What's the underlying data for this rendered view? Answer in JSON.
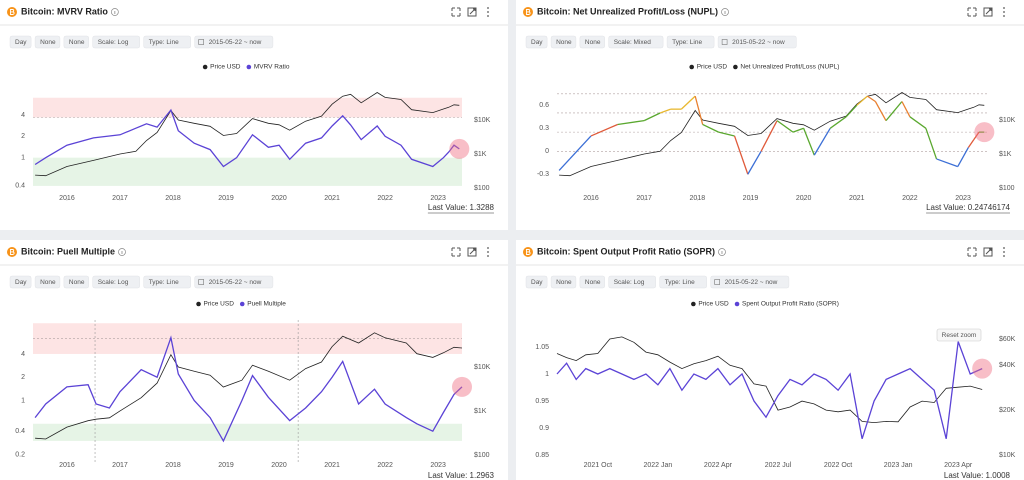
{
  "chart_data": [
    {
      "type": "line",
      "title": "Bitcoin: MVRV Ratio",
      "toolbar": [
        "Day",
        "None",
        "None",
        "Scale: Log",
        "Type: Line",
        "2015-05-22 ~ now"
      ],
      "last_value": "Last Value: 1.3288",
      "x": [
        2015.4,
        2015.6,
        2016,
        2016.5,
        2017,
        2017.3,
        2017.5,
        2017.7,
        2017.96,
        2018.1,
        2018.4,
        2018.7,
        2018.95,
        2019.2,
        2019.5,
        2019.8,
        2020,
        2020.2,
        2020.5,
        2020.8,
        2021,
        2021.2,
        2021.35,
        2021.55,
        2021.85,
        2022,
        2022.3,
        2022.5,
        2022.9,
        2023.1,
        2023.2,
        2023.3,
        2023.4
      ],
      "series": [
        {
          "name": "Price USD",
          "color": "#222222",
          "axis": "y2",
          "values": [
            240,
            230,
            430,
            650,
            1000,
            1200,
            2500,
            4300,
            19000,
            10000,
            8000,
            6500,
            3500,
            4000,
            11000,
            8000,
            7200,
            5000,
            9200,
            13000,
            29000,
            50000,
            57000,
            32000,
            64000,
            46000,
            40000,
            20000,
            16500,
            21000,
            23500,
            28000,
            27000
          ]
        },
        {
          "name": "MVRV Ratio",
          "color": "#5b43d6",
          "values": [
            0.8,
            1.0,
            1.5,
            1.9,
            2.1,
            2.6,
            3.0,
            2.7,
            4.7,
            2.4,
            1.6,
            1.3,
            0.75,
            1.0,
            2.1,
            1.4,
            1.5,
            0.95,
            1.6,
            1.9,
            2.8,
            3.9,
            2.9,
            1.8,
            2.8,
            2.0,
            1.5,
            0.95,
            0.75,
            1.0,
            1.2,
            1.5,
            1.33
          ]
        }
      ],
      "xlim": [
        2015.36,
        2023.45
      ],
      "xticks": [
        2016,
        2017,
        2018,
        2019,
        2020,
        2021,
        2022,
        2023
      ],
      "ylog": true,
      "ylim": [
        0.27,
        9
      ],
      "yticks": [
        0.4,
        1,
        2,
        4
      ],
      "y2log": true,
      "y2lim": [
        51,
        76000
      ],
      "y2ticks": [
        {
          "value": 100,
          "label": "$100"
        },
        {
          "value": 1000,
          "label": "$1K"
        },
        {
          "value": 10000,
          "label": "$10K"
        }
      ],
      "bands": [
        {
          "from": 3.7,
          "to": 7,
          "color": "#fde4e4"
        },
        {
          "from": 0.4,
          "to": 1,
          "color": "#e6f4e6"
        }
      ],
      "ref_lines": [
        3.7
      ]
    },
    {
      "type": "line",
      "title": "Bitcoin: Net Unrealized Profit/Loss (NUPL)",
      "toolbar": [
        "Day",
        "None",
        "None",
        "Scale: Mixed",
        "Type: Line",
        "2015-05-22 ~ now"
      ],
      "last_value": "Last Value: 0.24746174",
      "x": [
        2015.4,
        2015.6,
        2016,
        2016.5,
        2017,
        2017.3,
        2017.5,
        2017.7,
        2017.96,
        2018.1,
        2018.4,
        2018.7,
        2018.95,
        2019.2,
        2019.5,
        2019.8,
        2020,
        2020.2,
        2020.5,
        2020.8,
        2021,
        2021.2,
        2021.35,
        2021.55,
        2021.85,
        2022,
        2022.3,
        2022.5,
        2022.9,
        2023.1,
        2023.2,
        2023.3,
        2023.4
      ],
      "series": [
        {
          "name": "Price USD",
          "color": "#222222",
          "axis": "y2",
          "values": [
            240,
            230,
            430,
            650,
            1000,
            1200,
            2500,
            4300,
            19000,
            10000,
            8000,
            6500,
            3500,
            4000,
            11000,
            8000,
            7200,
            5000,
            9200,
            13000,
            29000,
            50000,
            57000,
            32000,
            64000,
            46000,
            40000,
            20000,
            16500,
            21000,
            23500,
            28000,
            27000
          ]
        },
        {
          "name": "Net Unrealized Profit/Loss (NUPL)",
          "color": "#222222",
          "value_colors": [
            {
              "max": 0,
              "color": "#3c6fd6"
            },
            {
              "max": 0.25,
              "color": "#e05a3a"
            },
            {
              "max": 0.5,
              "color": "#5aa82f"
            },
            {
              "max": 0.65,
              "color": "#e8b830"
            },
            {
              "color": "#e88030"
            }
          ],
          "values": [
            -0.25,
            -0.1,
            0.2,
            0.35,
            0.4,
            0.5,
            0.55,
            0.55,
            0.72,
            0.35,
            0.25,
            0.2,
            -0.3,
            0.0,
            0.4,
            0.25,
            0.3,
            -0.05,
            0.3,
            0.45,
            0.6,
            0.72,
            0.65,
            0.4,
            0.65,
            0.45,
            0.3,
            -0.1,
            -0.2,
            0.05,
            0.15,
            0.25,
            0.25
          ]
        }
      ],
      "xlim": [
        2015.36,
        2023.45
      ],
      "xticks": [
        2016,
        2017,
        2018,
        2019,
        2020,
        2021,
        2022,
        2023
      ],
      "ylim": [
        -0.61,
        0.8
      ],
      "yticks": [
        -0.3,
        0,
        0.3,
        0.6
      ],
      "y2log": true,
      "y2lim": [
        51,
        76000
      ],
      "y2ticks": [
        {
          "value": 100,
          "label": "$100"
        },
        {
          "value": 1000,
          "label": "$1K"
        },
        {
          "value": 10000,
          "label": "$10K"
        }
      ],
      "ref_lines": [
        0.75,
        0.5,
        0.25,
        0
      ]
    },
    {
      "type": "line",
      "title": "Bitcoin: Puell Multiple",
      "toolbar": [
        "Day",
        "None",
        "None",
        "Scale: Log",
        "Type: Line",
        "2015-05-22 ~ now"
      ],
      "last_value": "Last Value: 1.2963",
      "x": [
        2015.4,
        2015.6,
        2016,
        2016.4,
        2016.55,
        2016.8,
        2017,
        2017.4,
        2017.7,
        2017.96,
        2018.1,
        2018.4,
        2018.7,
        2018.95,
        2019.3,
        2019.5,
        2019.8,
        2020.2,
        2020.5,
        2020.8,
        2021,
        2021.2,
        2021.5,
        2021.8,
        2022,
        2022.4,
        2022.6,
        2022.9,
        2023.1,
        2023.3,
        2023.45
      ],
      "series": [
        {
          "name": "Price USD",
          "color": "#222222",
          "axis": "y2",
          "values": [
            240,
            230,
            430,
            600,
            650,
            700,
            1000,
            2000,
            4300,
            19000,
            10000,
            8000,
            6500,
            3500,
            5000,
            11000,
            8000,
            5000,
            9200,
            13000,
            29000,
            50000,
            35000,
            60000,
            46000,
            35000,
            20000,
            16500,
            21000,
            28000,
            27000
          ]
        },
        {
          "name": "Puell Multiple",
          "color": "#5b43d6",
          "values": [
            0.6,
            0.9,
            1.5,
            1.6,
            0.9,
            0.8,
            1.3,
            2.5,
            2.0,
            6.5,
            2.2,
            1.0,
            0.6,
            0.3,
            1.0,
            2.1,
            1.1,
            0.55,
            0.8,
            1.3,
            2.0,
            3.2,
            0.9,
            1.4,
            0.9,
            0.6,
            0.5,
            0.4,
            0.7,
            1.2,
            1.5
          ]
        }
      ],
      "xlim": [
        2015.36,
        2023.45
      ],
      "xticks": [
        2016,
        2017,
        2018,
        2019,
        2020,
        2021,
        2022,
        2023
      ],
      "ylog": true,
      "ylim": [
        0.16,
        11
      ],
      "yticks": [
        0.2,
        0.4,
        1,
        2,
        4
      ],
      "y2log": true,
      "y2lim": [
        69,
        117000
      ],
      "y2ticks": [
        {
          "value": 100,
          "label": "$100"
        },
        {
          "value": 1000,
          "label": "$1K"
        },
        {
          "value": 10000,
          "label": "$10K"
        }
      ],
      "bands": [
        {
          "from": 4,
          "to": 10,
          "color": "#fde4e4"
        },
        {
          "from": 0.3,
          "to": 0.5,
          "color": "#e6f4e6"
        }
      ],
      "ref_lines": [
        6.3
      ],
      "event_lines": [
        2016.53,
        2020.36
      ]
    },
    {
      "type": "line",
      "title": "Bitcoin: Spent Output Profit Ratio (SOPR)",
      "toolbar": [
        "Day",
        "None",
        "None",
        "Scale: Log",
        "Type: Line",
        "2015-05-22 ~ now"
      ],
      "last_value": "Last Value: 1.0008",
      "reset_zoom": "Reset zoom",
      "x": [
        2021.58,
        2021.62,
        2021.66,
        2021.7,
        2021.75,
        2021.8,
        2021.85,
        2021.9,
        2021.95,
        2022.0,
        2022.05,
        2022.1,
        2022.15,
        2022.2,
        2022.25,
        2022.3,
        2022.35,
        2022.4,
        2022.45,
        2022.5,
        2022.55,
        2022.6,
        2022.65,
        2022.7,
        2022.75,
        2022.8,
        2022.85,
        2022.9,
        2022.95,
        2023.0,
        2023.05,
        2023.1,
        2023.15,
        2023.2,
        2023.25,
        2023.3,
        2023.35
      ],
      "series": [
        {
          "name": "Price USD",
          "color": "#222222",
          "axis": "y2",
          "values": [
            48000,
            45000,
            43000,
            47000,
            48000,
            60000,
            62000,
            57000,
            49000,
            47000,
            42000,
            38000,
            41000,
            43000,
            46000,
            40000,
            38000,
            30000,
            29000,
            20000,
            21000,
            23000,
            22000,
            20000,
            19500,
            20000,
            16800,
            16500,
            16800,
            16700,
            21000,
            23000,
            22500,
            28000,
            28500,
            29000,
            27500
          ]
        },
        {
          "name": "Spent Output Profit Ratio (SOPR)",
          "color": "#5b43d6",
          "values": [
            1.0,
            1.02,
            0.99,
            1.01,
            1.0,
            1.01,
            1.0,
            0.99,
            1.0,
            0.98,
            1.01,
            0.97,
            1.0,
            0.99,
            1.01,
            0.98,
            1.0,
            0.95,
            0.92,
            0.96,
            0.99,
            0.98,
            1.0,
            0.99,
            0.97,
            1.0,
            0.88,
            0.95,
            0.99,
            1.0,
            1.01,
            0.99,
            0.97,
            0.88,
            1.06,
            1.0,
            1.01
          ]
        }
      ],
      "xlim": [
        2021.58,
        2023.37
      ],
      "xticks": [
        {
          "value": 2021.75,
          "label": "2021 Oct"
        },
        {
          "value": 2022.0,
          "label": "2022 Jan"
        },
        {
          "value": 2022.25,
          "label": "2022 Apr"
        },
        {
          "value": 2022.5,
          "label": "2022 Jul"
        },
        {
          "value": 2022.75,
          "label": "2022 Oct"
        },
        {
          "value": 2023.0,
          "label": "2023 Jan"
        },
        {
          "value": 2023.25,
          "label": "2023 Apr"
        }
      ],
      "ylim": [
        0.837,
        1.1
      ],
      "yticks": [
        0.85,
        0.9,
        0.95,
        1,
        1.05
      ],
      "y2log": true,
      "y2lim": [
        8970,
        80500
      ],
      "y2ticks": [
        {
          "value": 10000,
          "label": "$10K"
        },
        {
          "value": 20000,
          "label": "$20K"
        },
        {
          "value": 40000,
          "label": "$40K"
        },
        {
          "value": 60000,
          "label": "$60K"
        }
      ]
    }
  ]
}
